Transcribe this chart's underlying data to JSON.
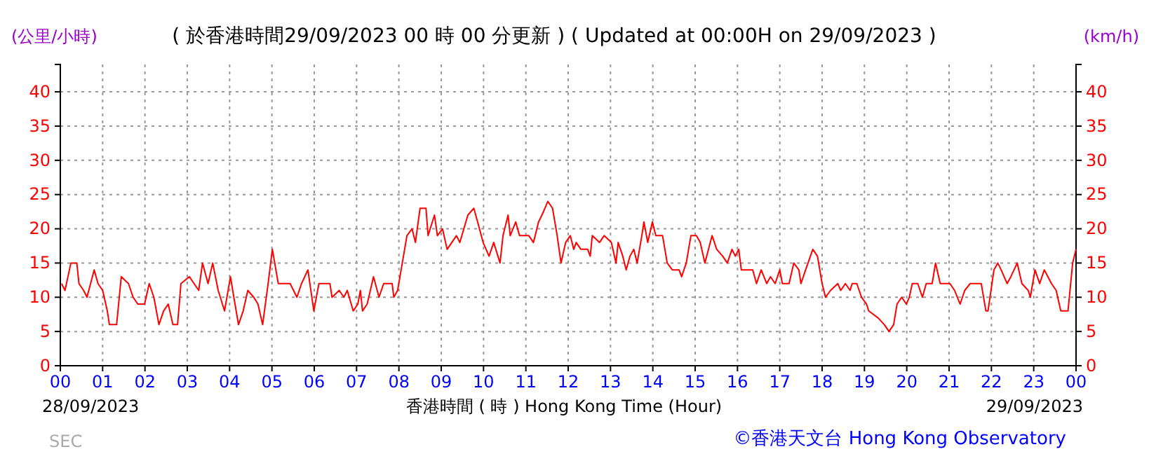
{
  "chart_data": {
    "type": "line",
    "title": "( 於香港時間29/09/2023 00 時 00 分更新 ) ( Updated at 00:00H on 29/09/2023 )",
    "xlabel": "香港時間 ( 時 ) Hong Kong Time (Hour)",
    "ylabel": "(公里/小時)",
    "y2label": "(km/h)",
    "annotations": [
      "28/09/2023",
      "29/09/2023",
      "©香港天文台 Hong Kong Observatory",
      "SEC"
    ],
    "x": [
      0.03,
      0.11,
      0.25,
      0.39,
      0.44,
      0.55,
      0.63,
      0.8,
      0.89,
      1.0,
      1.11,
      1.16,
      1.33,
      1.44,
      1.61,
      1.72,
      1.83,
      1.99,
      2.1,
      2.21,
      2.33,
      2.44,
      2.55,
      2.66,
      2.77,
      2.85,
      3.05,
      3.16,
      3.27,
      3.36,
      3.49,
      3.6,
      3.73,
      3.88,
      4.02,
      4.1,
      4.21,
      4.32,
      4.43,
      4.57,
      4.67,
      4.78,
      4.91,
      5.01,
      5.15,
      5.43,
      5.59,
      5.7,
      5.85,
      5.99,
      6.11,
      6.15,
      6.37,
      6.42,
      6.59,
      6.7,
      6.78,
      6.92,
      7.03,
      7.09,
      7.14,
      7.25,
      7.4,
      7.53,
      7.64,
      7.84,
      7.88,
      7.97,
      8.08,
      8.19,
      8.31,
      8.39,
      8.5,
      8.64,
      8.69,
      8.84,
      8.91,
      9.03,
      9.14,
      9.25,
      9.36,
      9.44,
      9.63,
      9.77,
      9.86,
      9.99,
      10.13,
      10.24,
      10.39,
      10.46,
      10.58,
      10.63,
      10.76,
      10.85,
      11.07,
      11.18,
      11.3,
      11.38,
      11.52,
      11.63,
      11.74,
      11.83,
      11.94,
      12.05,
      12.13,
      12.19,
      12.3,
      12.46,
      12.52,
      12.57,
      12.74,
      12.85,
      13.02,
      13.13,
      13.18,
      13.29,
      13.37,
      13.46,
      13.55,
      13.63,
      13.74,
      13.79,
      13.88,
      13.99,
      14.07,
      14.23,
      14.34,
      14.46,
      14.62,
      14.68,
      14.79,
      14.9,
      15.03,
      15.12,
      15.23,
      15.4,
      15.51,
      15.65,
      15.76,
      15.87,
      15.95,
      16.03,
      16.09,
      16.23,
      16.36,
      16.45,
      16.56,
      16.69,
      16.78,
      16.89,
      17.0,
      17.06,
      17.22,
      17.33,
      17.45,
      17.5,
      17.61,
      17.78,
      17.89,
      18.0,
      18.08,
      18.2,
      18.37,
      18.44,
      18.55,
      18.66,
      18.71,
      18.82,
      18.93,
      19.05,
      19.1,
      19.32,
      19.47,
      19.58,
      19.69,
      19.77,
      19.88,
      19.99,
      20.06,
      20.13,
      20.26,
      20.37,
      20.46,
      20.6,
      20.68,
      20.79,
      21.02,
      21.13,
      21.26,
      21.37,
      21.5,
      21.76,
      21.87,
      21.92,
      22.06,
      22.15,
      22.23,
      22.37,
      22.46,
      22.61,
      22.72,
      22.87,
      22.92,
      23.03,
      23.14,
      23.25,
      23.42,
      23.53,
      23.64,
      23.81,
      23.92,
      24.0
    ],
    "series": [
      {
        "color": "#ff0000",
        "values": [
          12,
          11,
          15,
          15,
          12,
          11,
          10,
          14,
          12,
          11,
          8,
          6,
          6,
          13,
          12,
          10,
          9,
          9,
          12,
          10,
          6,
          8,
          9,
          6,
          6,
          12,
          13,
          12,
          11,
          15,
          12,
          15,
          11,
          8,
          13,
          10,
          6,
          8,
          11,
          10,
          9,
          6,
          12,
          17,
          12,
          12,
          10,
          12,
          14,
          8,
          12,
          12,
          12,
          10,
          11,
          10,
          11,
          8,
          9,
          11,
          8,
          9,
          13,
          10,
          12,
          12,
          10,
          11,
          15,
          19,
          20,
          18,
          23,
          23,
          19,
          22,
          19,
          20,
          17,
          18,
          19,
          18,
          22,
          23,
          21,
          18,
          16,
          18,
          15,
          19,
          22,
          19,
          21,
          19,
          19,
          18,
          21,
          22,
          24,
          23,
          19,
          15,
          18,
          19,
          17,
          18,
          17,
          17,
          16,
          19,
          18,
          19,
          18,
          15,
          18,
          16,
          14,
          16,
          17,
          15,
          19,
          21,
          18,
          21,
          19,
          19,
          15,
          14,
          14,
          13,
          15,
          19,
          19,
          18,
          15,
          19,
          17,
          16,
          15,
          17,
          16,
          17,
          14,
          14,
          14,
          12,
          14,
          12,
          13,
          12,
          14,
          12,
          12,
          15,
          14,
          12,
          14,
          17,
          16,
          12,
          10,
          11,
          12,
          11,
          12,
          11,
          12,
          12,
          10,
          9,
          8,
          7,
          6,
          5,
          6,
          9,
          10,
          9,
          10,
          12,
          12,
          10,
          12,
          12,
          15,
          12,
          12,
          11,
          9,
          11,
          12,
          12,
          8,
          8,
          14,
          15,
          14,
          12,
          13,
          15,
          12,
          11,
          10,
          14,
          12,
          14,
          12,
          11,
          8,
          8,
          15,
          17
        ]
      }
    ],
    "xlim": [
      0,
      24
    ],
    "xticks": [
      {
        "value": 0,
        "label": "00"
      },
      {
        "value": 1,
        "label": "01"
      },
      {
        "value": 2,
        "label": "02"
      },
      {
        "value": 3,
        "label": "03"
      },
      {
        "value": 4,
        "label": "04"
      },
      {
        "value": 5,
        "label": "05"
      },
      {
        "value": 6,
        "label": "06"
      },
      {
        "value": 7,
        "label": "07"
      },
      {
        "value": 8,
        "label": "08"
      },
      {
        "value": 9,
        "label": "09"
      },
      {
        "value": 10,
        "label": "10"
      },
      {
        "value": 11,
        "label": "11"
      },
      {
        "value": 12,
        "label": "12"
      },
      {
        "value": 13,
        "label": "13"
      },
      {
        "value": 14,
        "label": "14"
      },
      {
        "value": 15,
        "label": "15"
      },
      {
        "value": 16,
        "label": "16"
      },
      {
        "value": 17,
        "label": "17"
      },
      {
        "value": 18,
        "label": "18"
      },
      {
        "value": 19,
        "label": "19"
      },
      {
        "value": 20,
        "label": "20"
      },
      {
        "value": 21,
        "label": "21"
      },
      {
        "value": 22,
        "label": "22"
      },
      {
        "value": 23,
        "label": "23"
      },
      {
        "value": 24,
        "label": "00"
      }
    ],
    "ylim": [
      0,
      44
    ],
    "yticks": [
      0,
      5,
      10,
      15,
      20,
      25,
      30,
      35,
      40
    ],
    "y2lim": [
      0,
      44
    ],
    "y2ticks": [
      0,
      5,
      10,
      15,
      20,
      25,
      30,
      35,
      40
    ],
    "grid": true,
    "marker": "none",
    "line_style": "solid"
  }
}
